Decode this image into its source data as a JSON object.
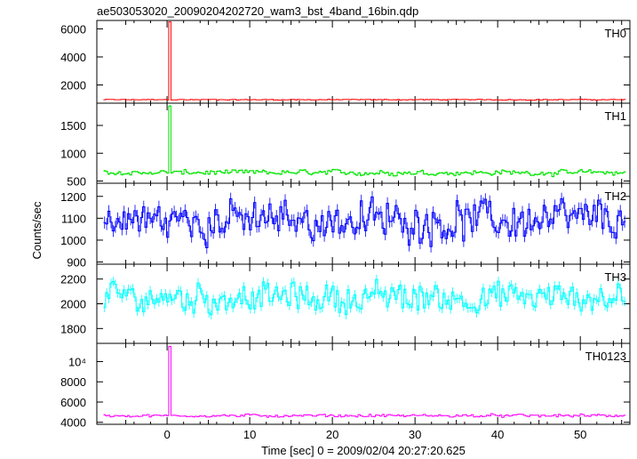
{
  "chart_data": {
    "type": "line",
    "title": "ae503053020_20090204202720_wam3_bst_4band_16bin.qdp",
    "xlabel": "Time [sec] 0 = 2009/02/04 20:27:20.625",
    "ylabel": "Counts/sec",
    "xlim": [
      -8.5,
      56
    ],
    "xticks": [
      0,
      10,
      20,
      30,
      40,
      50
    ],
    "grid": false,
    "series_count": 240,
    "panels": [
      {
        "name": "TH0",
        "color": "#ff0000",
        "ylim": [
          700,
          6600
        ],
        "yticks": [
          {
            "v": 2000,
            "t": "2000"
          },
          {
            "v": 4000,
            "t": "4000"
          },
          {
            "v": 6000,
            "t": "6000"
          }
        ],
        "base": 950,
        "noise": 40,
        "peak": 6500,
        "peak_x": 0.3
      },
      {
        "name": "TH1",
        "color": "#00e600",
        "ylim": [
          460,
          1900
        ],
        "yticks": [
          {
            "v": 500,
            "t": "500"
          },
          {
            "v": 1000,
            "t": "1000"
          },
          {
            "v": 1500,
            "t": "1500"
          }
        ],
        "base": 650,
        "noise": 60,
        "peak": 1850,
        "peak_x": 0.3
      },
      {
        "name": "TH2",
        "color": "#0000ff",
        "ylim": [
          890,
          1260
        ],
        "yticks": [
          {
            "v": 900,
            "t": "900"
          },
          {
            "v": 1000,
            "t": "1000"
          },
          {
            "v": 1100,
            "t": "1100"
          },
          {
            "v": 1200,
            "t": "1200"
          }
        ],
        "base": 1090,
        "noise": 110,
        "peak": null,
        "peak_x": null
      },
      {
        "name": "TH3",
        "color": "#00ffff",
        "ylim": [
          1680,
          2320
        ],
        "yticks": [
          {
            "v": 1800,
            "t": "1800"
          },
          {
            "v": 2000,
            "t": "2000"
          },
          {
            "v": 2200,
            "t": "2200"
          }
        ],
        "base": 2050,
        "noise": 150,
        "peak": null,
        "peak_x": null
      },
      {
        "name": "TH0123",
        "color": "#ff00ff",
        "ylim": [
          3800,
          11800
        ],
        "yticks": [
          {
            "v": 4000,
            "t": "4000"
          },
          {
            "v": 6000,
            "t": "6000"
          },
          {
            "v": 8000,
            "t": "8000"
          },
          {
            "v": 10000,
            "t": "10⁴"
          }
        ],
        "base": 4650,
        "noise": 180,
        "peak": 11500,
        "peak_x": 0.3
      }
    ]
  }
}
